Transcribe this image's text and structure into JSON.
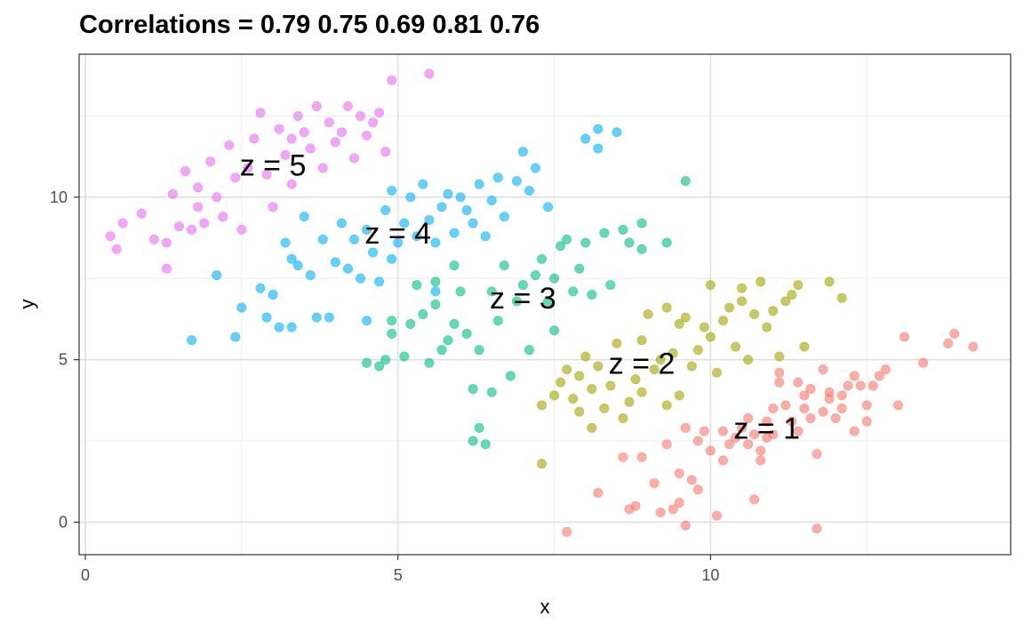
{
  "chart_data": {
    "type": "scatter",
    "title": "Correlations = 0.79 0.75 0.69 0.81 0.76",
    "xlabel": "x",
    "ylabel": "y",
    "xlim": [
      -0.1,
      14.8
    ],
    "ylim": [
      -1.0,
      14.4
    ],
    "x_ticks": [
      0,
      5,
      10
    ],
    "y_ticks": [
      0,
      5,
      10
    ],
    "grid": true,
    "point_opacity": 0.6,
    "series": [
      {
        "key": "1",
        "color": "#F8766D",
        "label": "z = 1",
        "label_pos": [
          10.9,
          2.9
        ],
        "points": [
          [
            7.7,
            -0.3
          ],
          [
            8.2,
            0.9
          ],
          [
            8.6,
            2.0
          ],
          [
            8.7,
            0.4
          ],
          [
            8.8,
            0.5
          ],
          [
            8.9,
            2.0
          ],
          [
            9.1,
            1.2
          ],
          [
            9.2,
            0.3
          ],
          [
            9.3,
            2.4
          ],
          [
            9.4,
            0.4
          ],
          [
            9.5,
            0.6
          ],
          [
            9.5,
            1.5
          ],
          [
            9.6,
            -0.1
          ],
          [
            9.6,
            2.9
          ],
          [
            9.7,
            1.3
          ],
          [
            9.8,
            1.0
          ],
          [
            9.8,
            2.5
          ],
          [
            9.9,
            2.8
          ],
          [
            10.0,
            2.2
          ],
          [
            10.1,
            0.2
          ],
          [
            10.2,
            2.8
          ],
          [
            10.2,
            1.9
          ],
          [
            10.3,
            2.4
          ],
          [
            10.4,
            2.6
          ],
          [
            10.5,
            2.9
          ],
          [
            10.6,
            3.2
          ],
          [
            10.6,
            2.4
          ],
          [
            10.7,
            0.7
          ],
          [
            10.7,
            2.7
          ],
          [
            10.8,
            2.2
          ],
          [
            10.8,
            1.9
          ],
          [
            10.9,
            3.1
          ],
          [
            10.9,
            2.6
          ],
          [
            11.0,
            3.5
          ],
          [
            11.0,
            2.7
          ],
          [
            11.1,
            4.3
          ],
          [
            11.1,
            4.6
          ],
          [
            11.2,
            3.6
          ],
          [
            11.3,
            3.1
          ],
          [
            11.4,
            2.8
          ],
          [
            11.4,
            4.3
          ],
          [
            11.5,
            3.5
          ],
          [
            11.5,
            3.9
          ],
          [
            11.6,
            4.1
          ],
          [
            11.6,
            3.2
          ],
          [
            11.7,
            2.1
          ],
          [
            11.7,
            -0.2
          ],
          [
            11.8,
            4.7
          ],
          [
            11.8,
            3.4
          ],
          [
            11.9,
            4.0
          ],
          [
            11.9,
            3.8
          ],
          [
            12.0,
            3.2
          ],
          [
            12.1,
            3.5
          ],
          [
            12.1,
            3.9
          ],
          [
            12.2,
            4.2
          ],
          [
            12.3,
            2.8
          ],
          [
            12.3,
            4.5
          ],
          [
            12.4,
            4.2
          ],
          [
            12.5,
            3.6
          ],
          [
            12.5,
            3.1
          ],
          [
            12.6,
            4.2
          ],
          [
            12.7,
            4.5
          ],
          [
            12.8,
            4.7
          ],
          [
            13.0,
            3.6
          ],
          [
            13.1,
            5.7
          ],
          [
            13.4,
            4.9
          ],
          [
            13.8,
            5.5
          ],
          [
            13.9,
            5.8
          ],
          [
            14.2,
            5.4
          ]
        ]
      },
      {
        "key": "2",
        "color": "#A3A500",
        "label": "z = 2",
        "label_pos": [
          8.9,
          4.9
        ],
        "points": [
          [
            7.3,
            1.8
          ],
          [
            7.3,
            3.6
          ],
          [
            7.5,
            3.9
          ],
          [
            7.6,
            4.3
          ],
          [
            7.7,
            4.7
          ],
          [
            7.8,
            3.8
          ],
          [
            7.9,
            3.4
          ],
          [
            7.9,
            4.5
          ],
          [
            8.0,
            5.1
          ],
          [
            8.1,
            4.1
          ],
          [
            8.1,
            2.9
          ],
          [
            8.2,
            4.8
          ],
          [
            8.3,
            3.5
          ],
          [
            8.4,
            4.2
          ],
          [
            8.5,
            5.5
          ],
          [
            8.6,
            3.2
          ],
          [
            8.7,
            3.7
          ],
          [
            8.8,
            4.4
          ],
          [
            8.9,
            5.6
          ],
          [
            8.9,
            4.0
          ],
          [
            9.0,
            6.4
          ],
          [
            9.1,
            4.7
          ],
          [
            9.2,
            5.0
          ],
          [
            9.3,
            3.6
          ],
          [
            9.3,
            6.6
          ],
          [
            9.4,
            5.2
          ],
          [
            9.5,
            3.9
          ],
          [
            9.5,
            6.1
          ],
          [
            9.6,
            6.3
          ],
          [
            9.7,
            4.8
          ],
          [
            9.8,
            5.3
          ],
          [
            9.9,
            6.0
          ],
          [
            10.0,
            7.3
          ],
          [
            10.0,
            5.7
          ],
          [
            10.1,
            4.6
          ],
          [
            10.2,
            6.2
          ],
          [
            10.3,
            6.6
          ],
          [
            10.4,
            5.4
          ],
          [
            10.5,
            7.2
          ],
          [
            10.5,
            6.8
          ],
          [
            10.6,
            5.0
          ],
          [
            10.7,
            6.4
          ],
          [
            10.8,
            7.4
          ],
          [
            10.9,
            6.0
          ],
          [
            11.0,
            6.5
          ],
          [
            11.1,
            5.1
          ],
          [
            11.2,
            6.8
          ],
          [
            11.3,
            7.0
          ],
          [
            11.4,
            7.3
          ],
          [
            11.5,
            5.4
          ],
          [
            11.9,
            7.4
          ],
          [
            12.1,
            6.9
          ]
        ]
      },
      {
        "key": "3",
        "color": "#00BF7D",
        "label": "z = 3",
        "label_pos": [
          7.0,
          6.9
        ],
        "points": [
          [
            4.5,
            4.9
          ],
          [
            4.7,
            4.8
          ],
          [
            4.8,
            5.0
          ],
          [
            4.9,
            5.8
          ],
          [
            4.9,
            6.2
          ],
          [
            5.1,
            5.1
          ],
          [
            5.2,
            6.1
          ],
          [
            5.3,
            7.3
          ],
          [
            5.4,
            6.4
          ],
          [
            5.5,
            4.9
          ],
          [
            5.6,
            7.4
          ],
          [
            5.6,
            6.7
          ],
          [
            5.7,
            5.3
          ],
          [
            5.8,
            5.6
          ],
          [
            5.9,
            6.1
          ],
          [
            5.9,
            7.9
          ],
          [
            6.0,
            7.1
          ],
          [
            6.1,
            5.8
          ],
          [
            6.2,
            2.5
          ],
          [
            6.2,
            4.1
          ],
          [
            6.3,
            5.3
          ],
          [
            6.3,
            2.9
          ],
          [
            6.4,
            2.4
          ],
          [
            6.5,
            7.1
          ],
          [
            6.5,
            4.0
          ],
          [
            6.6,
            6.2
          ],
          [
            6.7,
            7.9
          ],
          [
            6.8,
            4.5
          ],
          [
            6.9,
            6.8
          ],
          [
            7.0,
            7.3
          ],
          [
            7.1,
            5.3
          ],
          [
            7.2,
            7.6
          ],
          [
            7.3,
            8.1
          ],
          [
            7.4,
            6.8
          ],
          [
            7.5,
            5.9
          ],
          [
            7.5,
            7.5
          ],
          [
            7.6,
            8.5
          ],
          [
            7.7,
            8.7
          ],
          [
            7.8,
            7.1
          ],
          [
            7.9,
            7.8
          ],
          [
            8.0,
            8.6
          ],
          [
            8.1,
            7.0
          ],
          [
            8.3,
            8.9
          ],
          [
            8.4,
            7.3
          ],
          [
            8.6,
            9.0
          ],
          [
            8.7,
            8.6
          ],
          [
            8.9,
            9.2
          ],
          [
            8.9,
            8.4
          ],
          [
            9.3,
            8.6
          ],
          [
            9.6,
            10.5
          ]
        ]
      },
      {
        "key": "4",
        "color": "#00B0F6",
        "label": "z = 4",
        "label_pos": [
          5.0,
          8.9
        ],
        "points": [
          [
            1.7,
            5.6
          ],
          [
            2.1,
            7.6
          ],
          [
            2.4,
            5.7
          ],
          [
            2.5,
            6.6
          ],
          [
            2.8,
            7.2
          ],
          [
            2.9,
            6.3
          ],
          [
            3.0,
            7.0
          ],
          [
            3.1,
            6.0
          ],
          [
            3.2,
            8.6
          ],
          [
            3.3,
            8.1
          ],
          [
            3.3,
            6.0
          ],
          [
            3.4,
            7.9
          ],
          [
            3.5,
            9.4
          ],
          [
            3.6,
            7.6
          ],
          [
            3.7,
            6.3
          ],
          [
            3.8,
            8.7
          ],
          [
            3.9,
            6.3
          ],
          [
            4.0,
            8.0
          ],
          [
            4.1,
            9.2
          ],
          [
            4.2,
            7.8
          ],
          [
            4.3,
            8.7
          ],
          [
            4.4,
            7.5
          ],
          [
            4.5,
            9.0
          ],
          [
            4.5,
            6.2
          ],
          [
            4.6,
            8.3
          ],
          [
            4.7,
            7.4
          ],
          [
            4.8,
            9.6
          ],
          [
            4.9,
            8.1
          ],
          [
            4.9,
            10.2
          ],
          [
            5.0,
            8.6
          ],
          [
            5.1,
            9.2
          ],
          [
            5.2,
            10.0
          ],
          [
            5.3,
            8.8
          ],
          [
            5.4,
            10.4
          ],
          [
            5.5,
            9.3
          ],
          [
            5.6,
            8.6
          ],
          [
            5.6,
            7.1
          ],
          [
            5.7,
            9.7
          ],
          [
            5.8,
            10.1
          ],
          [
            5.9,
            8.9
          ],
          [
            6.0,
            10.0
          ],
          [
            6.1,
            9.6
          ],
          [
            6.2,
            9.2
          ],
          [
            6.3,
            10.4
          ],
          [
            6.4,
            8.8
          ],
          [
            6.5,
            9.9
          ],
          [
            6.6,
            10.6
          ],
          [
            6.7,
            9.4
          ],
          [
            6.9,
            10.5
          ],
          [
            7.0,
            11.4
          ],
          [
            7.1,
            10.2
          ],
          [
            7.2,
            10.9
          ],
          [
            7.4,
            9.7
          ],
          [
            8.0,
            11.8
          ],
          [
            8.2,
            12.1
          ],
          [
            8.2,
            11.5
          ],
          [
            8.5,
            12.0
          ]
        ]
      },
      {
        "key": "5",
        "color": "#E76BF3",
        "label": "z = 5",
        "label_pos": [
          3.0,
          11.0
        ],
        "points": [
          [
            0.4,
            8.8
          ],
          [
            0.5,
            8.4
          ],
          [
            0.6,
            9.2
          ],
          [
            0.9,
            9.5
          ],
          [
            1.1,
            8.7
          ],
          [
            1.3,
            8.6
          ],
          [
            1.3,
            7.8
          ],
          [
            1.4,
            10.1
          ],
          [
            1.5,
            9.1
          ],
          [
            1.6,
            10.8
          ],
          [
            1.7,
            9.0
          ],
          [
            1.8,
            10.3
          ],
          [
            1.8,
            9.7
          ],
          [
            1.9,
            9.2
          ],
          [
            2.0,
            11.1
          ],
          [
            2.1,
            10.0
          ],
          [
            2.2,
            9.4
          ],
          [
            2.3,
            11.6
          ],
          [
            2.4,
            10.6
          ],
          [
            2.5,
            9.0
          ],
          [
            2.6,
            10.9
          ],
          [
            2.7,
            11.8
          ],
          [
            2.8,
            12.6
          ],
          [
            2.9,
            10.7
          ],
          [
            3.0,
            9.7
          ],
          [
            3.1,
            12.1
          ],
          [
            3.2,
            11.3
          ],
          [
            3.3,
            10.4
          ],
          [
            3.3,
            11.8
          ],
          [
            3.4,
            12.5
          ],
          [
            3.5,
            12.0
          ],
          [
            3.6,
            11.5
          ],
          [
            3.7,
            12.8
          ],
          [
            3.8,
            10.9
          ],
          [
            3.9,
            12.3
          ],
          [
            4.0,
            11.7
          ],
          [
            4.1,
            12.0
          ],
          [
            4.2,
            12.8
          ],
          [
            4.3,
            11.2
          ],
          [
            4.4,
            12.5
          ],
          [
            4.5,
            11.9
          ],
          [
            4.6,
            12.3
          ],
          [
            4.7,
            12.6
          ],
          [
            4.8,
            11.4
          ],
          [
            4.9,
            13.6
          ],
          [
            5.5,
            13.8
          ]
        ]
      }
    ]
  }
}
